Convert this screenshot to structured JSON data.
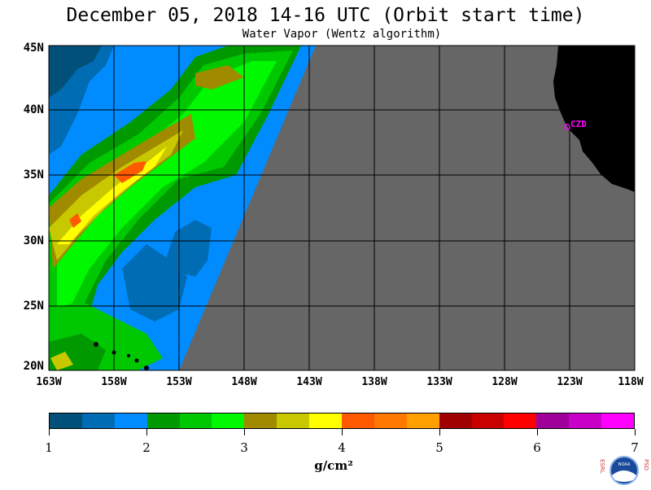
{
  "title": "December 05, 2018  14-16 UTC  (Orbit start time)",
  "subtitle": "Water Vapor (Wentz algorithm)",
  "map": {
    "lat_labels": [
      "45N",
      "40N",
      "35N",
      "30N",
      "25N",
      "20N"
    ],
    "lon_labels": [
      "163W",
      "158W",
      "153W",
      "148W",
      "143W",
      "138W",
      "133W",
      "128W",
      "123W",
      "118W"
    ],
    "station_label": "CZD",
    "station_color": "#ff00ff",
    "no_data_color": "#666666",
    "land_color": "#000000"
  },
  "colorbar": {
    "colors": [
      "#00507a",
      "#006cb4",
      "#008cff",
      "#009a00",
      "#00c800",
      "#00f800",
      "#a08a00",
      "#c8c800",
      "#ffff00",
      "#ff5a00",
      "#ff7800",
      "#ffa000",
      "#a00000",
      "#c80000",
      "#ff0000",
      "#a0009a",
      "#c800c8",
      "#ff00ff"
    ],
    "tick_labels": [
      "1",
      "2",
      "3",
      "4",
      "5",
      "6",
      "7"
    ],
    "unit": "g/cm²"
  },
  "logo": {
    "left_letters": "ESRL",
    "right_letters": "PSD",
    "center_text": "NOAA"
  }
}
